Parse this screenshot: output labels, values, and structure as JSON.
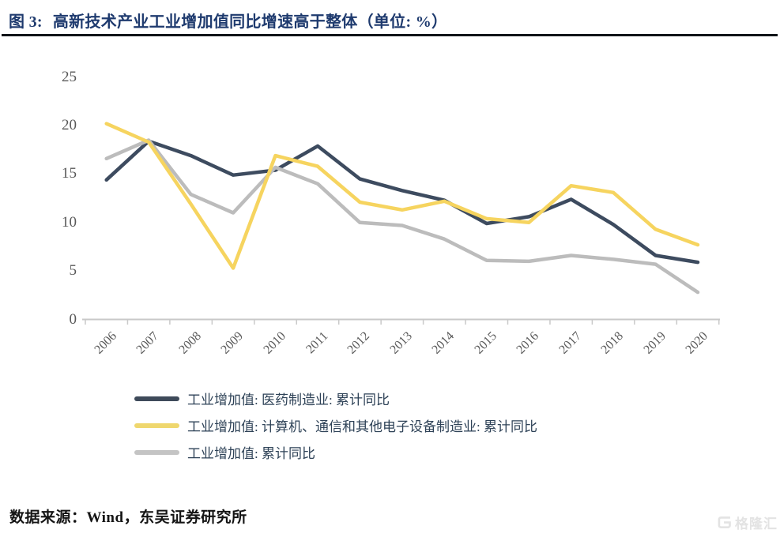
{
  "header": {
    "title_prefix": "图 3:",
    "title": "高新技术产业工业增加值同比增速高于整体（单位: %）"
  },
  "chart_data": {
    "type": "line",
    "title": "高新技术产业工业增加值同比增速高于整体",
    "unit": "%",
    "x": [
      "2006",
      "2007",
      "2008",
      "2009",
      "2010",
      "2011",
      "2012",
      "2013",
      "2014",
      "2015",
      "2016",
      "2017",
      "2018",
      "2019",
      "2020"
    ],
    "series": [
      {
        "name": "工业增加值: 医药制造业: 累计同比",
        "color": "#3d4b5f",
        "values": [
          14.4,
          18.4,
          16.9,
          14.9,
          15.4,
          17.9,
          14.5,
          13.3,
          12.3,
          9.9,
          10.6,
          12.4,
          9.8,
          6.6,
          5.9
        ]
      },
      {
        "name": "工业增加值: 计算机、通信和其他电子设备制造业: 累计同比",
        "color": "#f6d45f",
        "values": [
          20.2,
          18.3,
          11.9,
          5.3,
          16.9,
          15.8,
          12.1,
          11.3,
          12.2,
          10.4,
          10.0,
          13.8,
          13.1,
          9.3,
          7.7
        ]
      },
      {
        "name": "工业增加值: 累计同比",
        "color": "#bcbcbc",
        "values": [
          16.6,
          18.5,
          12.9,
          11.0,
          15.7,
          14.0,
          10.0,
          9.7,
          8.3,
          6.1,
          6.0,
          6.6,
          6.2,
          5.7,
          2.8
        ]
      }
    ],
    "ylim": [
      0,
      25
    ],
    "yticks": [
      0,
      5,
      10,
      15,
      20,
      25
    ],
    "grid": false,
    "axis_color": "#c9c9c9",
    "tick_label_color": "#595959",
    "legend_position": "bottom-left"
  },
  "legend": {
    "items": [
      {
        "label": "工业增加值: 医药制造业: 累计同比",
        "color": "#3e4a5a"
      },
      {
        "label": "工业增加值: 计算机、通信和其他电子设备制造业: 累计同比",
        "color": "#efd76e"
      },
      {
        "label": "工业增加值: 累计同比",
        "color": "#c4c4c4"
      }
    ]
  },
  "footer": {
    "source": "数据来源：Wind，东吴证券研究所"
  },
  "watermark": {
    "brand": "格隆汇"
  }
}
